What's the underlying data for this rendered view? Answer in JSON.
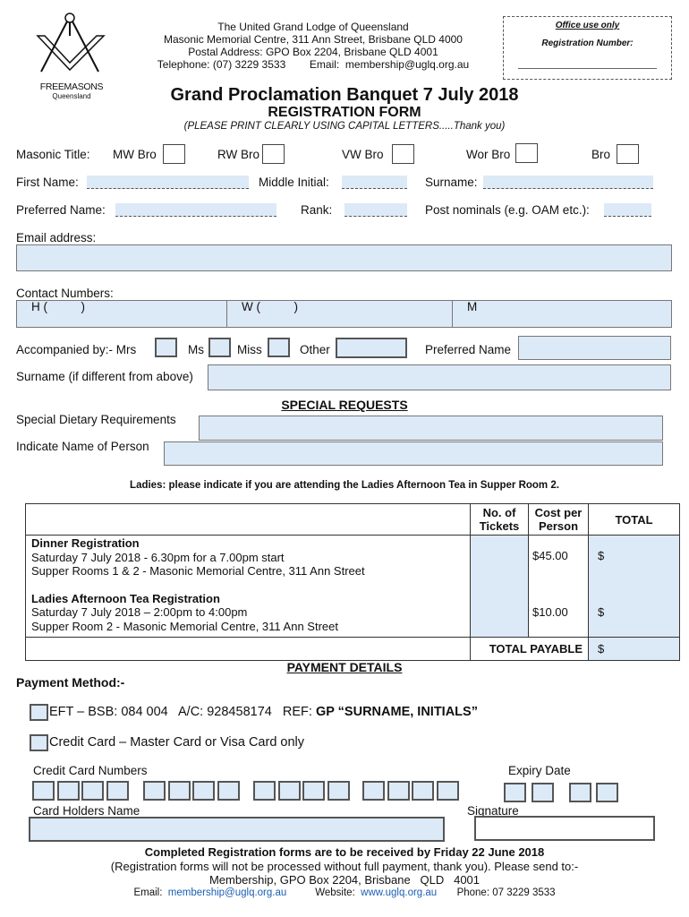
{
  "logo": {
    "text1": "FREEMASONS",
    "text2": "Queensland"
  },
  "header": {
    "lines": [
      "The United Grand Lodge of Queensland",
      "Masonic Memorial Centre, 311 Ann Street, Brisbane QLD 4000",
      "Postal Address:  GPO Box 2204, Brisbane QLD 4001",
      "Telephone: (07) 3229 3533        Email:  membership@uglq.org.au"
    ]
  },
  "office": {
    "title": "Office use only",
    "reg": "Registration Number:"
  },
  "title": "Grand Proclamation Banquet 7 July 2018",
  "subtitle": "REGISTRATION FORM",
  "instruction": "(PLEASE PRINT CLEARLY USING CAPITAL LETTERS.....Thank you)",
  "masonic": {
    "label": "Masonic Title:",
    "options": [
      "MW Bro",
      "RW Bro",
      "VW Bro",
      "Wor Bro",
      "Bro"
    ]
  },
  "fields": {
    "first": "First Name:",
    "middle": "Middle Initial:",
    "surname": "Surname:",
    "preferred": "Preferred Name:",
    "rank": "Rank:",
    "post": "Post nominals (e.g. OAM etc.):",
    "email": "Email address:",
    "contact": "Contact Numbers:",
    "h": "H (          )",
    "w": "W (          )",
    "m": "M"
  },
  "accompanied": {
    "label": "Accompanied by:- Mrs",
    "ms": "Ms",
    "miss": "Miss",
    "other": "Other",
    "preferred": "Preferred Name",
    "surname": "Surname (if different from above)"
  },
  "special": {
    "heading": "SPECIAL REQUESTS",
    "dietary": "Special Dietary Requirements",
    "person": "Indicate Name of Person"
  },
  "ladies_note": "Ladies: please indicate if you are attending the Ladies Afternoon Tea in Supper Room 2.",
  "table": {
    "headers": [
      "No. of Tickets",
      "Cost per Person",
      "TOTAL"
    ],
    "rows": [
      {
        "title": "Dinner Registration",
        "line1": "Saturday 7 July 2018 - 6.30pm for a 7.00pm start",
        "line2": "Supper Rooms 1 & 2 - Masonic Memorial Centre, 311 Ann Street",
        "cost": "$45.00",
        "total": "$"
      },
      {
        "title": "Ladies Afternoon Tea Registration",
        "line1": "Saturday 7 July 2018 – 2:00pm to 4:00pm",
        "line2": "Supper Room 2 - Masonic Memorial Centre, 311 Ann Street",
        "cost": "$10.00",
        "total": "$"
      }
    ],
    "total_label": "TOTAL PAYABLE",
    "total_value": "$"
  },
  "payment": {
    "heading": "PAYMENT DETAILS",
    "method": "Payment Method:-",
    "eft": "EFT – BSB: 084 004   A/C: 928458174   REF: ",
    "eft_ref": "GP “SURNAME, INITIALS”",
    "cc": "Credit Card – Master Card or Visa Card only",
    "cc_numbers": "Credit Card Numbers",
    "expiry": "Expiry Date",
    "holder": "Card Holders Name",
    "signature": "Signature"
  },
  "footer": {
    "bold": "Completed Registration forms are to be received by Friday 22 June 2018",
    "line2": "(Registration forms will not be processed without full payment, thank you).  Please send to:-",
    "line3": "Membership, GPO Box 2204, Brisbane   QLD   4001",
    "email_label": "Email:",
    "email": "membership@uglq.org.au",
    "web_label": "Website:",
    "web": "www.uglq.org.au",
    "phone": "Phone: 07 3229 3533"
  }
}
